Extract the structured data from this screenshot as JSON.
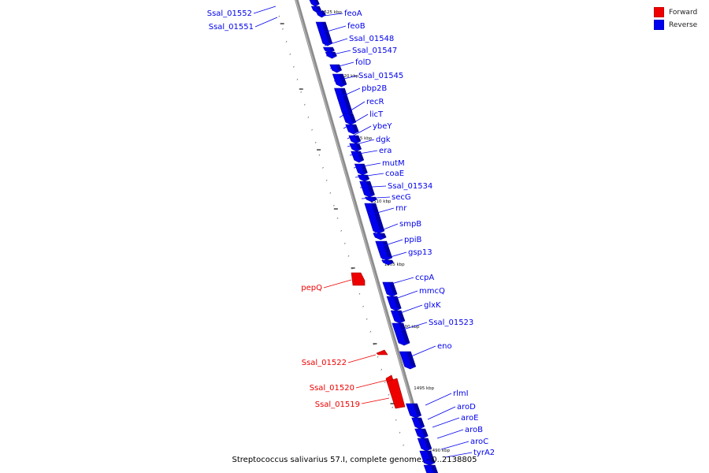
{
  "legend": {
    "forward": {
      "label": "Forward",
      "color": "#ee0000"
    },
    "reverse": {
      "label": "Reverse",
      "color": "#0000ee"
    }
  },
  "caption": "Streptococcus salivarius 57.I, complete genome. - 0..2138805",
  "scale_labels": [
    "1525 kbp",
    "1520 kbp",
    "1515 kbp",
    "1510 kbp",
    "1505 kbp",
    "1500 kbp",
    "1495 kbp",
    "1490 kbp"
  ],
  "genes": [
    {
      "name": "Ssal_01552",
      "strand": "reverse",
      "side": "left"
    },
    {
      "name": "Ssal_01551",
      "strand": "reverse",
      "side": "left"
    },
    {
      "name": "feoA",
      "strand": "reverse",
      "side": "right"
    },
    {
      "name": "feoB",
      "strand": "reverse",
      "side": "right"
    },
    {
      "name": "Ssal_01548",
      "strand": "reverse",
      "side": "right"
    },
    {
      "name": "Ssal_01547",
      "strand": "reverse",
      "side": "right"
    },
    {
      "name": "folD",
      "strand": "reverse",
      "side": "right"
    },
    {
      "name": "Ssal_01545",
      "strand": "reverse",
      "side": "right"
    },
    {
      "name": "pbp2B",
      "strand": "reverse",
      "side": "right"
    },
    {
      "name": "recR",
      "strand": "reverse",
      "side": "right"
    },
    {
      "name": "licT",
      "strand": "reverse",
      "side": "right"
    },
    {
      "name": "ybeY",
      "strand": "reverse",
      "side": "right"
    },
    {
      "name": "dgk",
      "strand": "reverse",
      "side": "right"
    },
    {
      "name": "era",
      "strand": "reverse",
      "side": "right"
    },
    {
      "name": "mutM",
      "strand": "reverse",
      "side": "right"
    },
    {
      "name": "coaE",
      "strand": "reverse",
      "side": "right"
    },
    {
      "name": "Ssal_01534",
      "strand": "reverse",
      "side": "right"
    },
    {
      "name": "secG",
      "strand": "reverse",
      "side": "right"
    },
    {
      "name": "rnr",
      "strand": "reverse",
      "side": "right"
    },
    {
      "name": "smpB",
      "strand": "reverse",
      "side": "right"
    },
    {
      "name": "ppiB",
      "strand": "reverse",
      "side": "right"
    },
    {
      "name": "gsp13",
      "strand": "reverse",
      "side": "right"
    },
    {
      "name": "ccpA",
      "strand": "reverse",
      "side": "right"
    },
    {
      "name": "pepQ",
      "strand": "forward",
      "side": "left"
    },
    {
      "name": "mmcQ",
      "strand": "reverse",
      "side": "right"
    },
    {
      "name": "glxK",
      "strand": "reverse",
      "side": "right"
    },
    {
      "name": "Ssal_01523",
      "strand": "reverse",
      "side": "right"
    },
    {
      "name": "eno",
      "strand": "reverse",
      "side": "right"
    },
    {
      "name": "Ssal_01522",
      "strand": "forward",
      "side": "left"
    },
    {
      "name": "Ssal_01520",
      "strand": "forward",
      "side": "left"
    },
    {
      "name": "Ssal_01519",
      "strand": "forward",
      "side": "left"
    },
    {
      "name": "rlmI",
      "strand": "reverse",
      "side": "right"
    },
    {
      "name": "aroD",
      "strand": "reverse",
      "side": "right"
    },
    {
      "name": "aroE",
      "strand": "reverse",
      "side": "right"
    },
    {
      "name": "aroB",
      "strand": "reverse",
      "side": "right"
    },
    {
      "name": "aroC",
      "strand": "reverse",
      "side": "right"
    },
    {
      "name": "tyrA2",
      "strand": "reverse",
      "side": "right"
    }
  ]
}
